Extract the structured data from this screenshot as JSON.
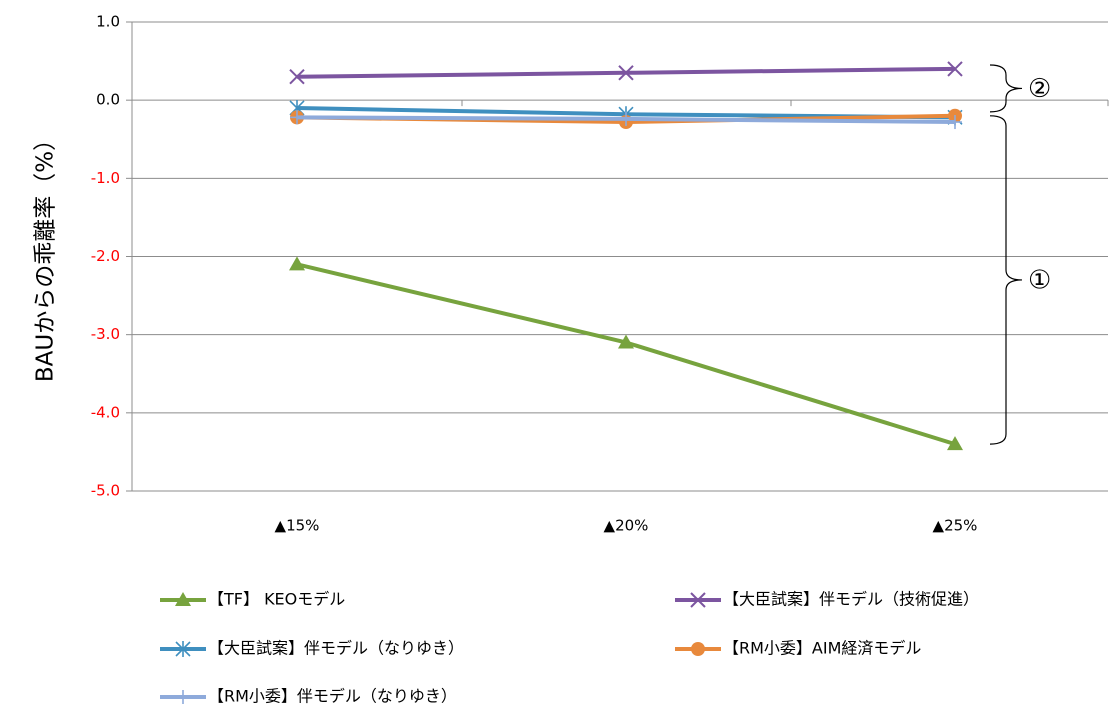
{
  "chart_data": {
    "type": "line",
    "title": "",
    "xlabel": "",
    "ylabel": "BAUからの乖離率（%）",
    "categories": [
      "▲15%",
      "▲20%",
      "▲25%"
    ],
    "ylim": [
      -5.0,
      1.0
    ],
    "yticks": [
      {
        "value": 1.0,
        "label": "1.0",
        "color": "#000000"
      },
      {
        "value": 0.0,
        "label": "0.0",
        "color": "#000000"
      },
      {
        "value": -1.0,
        "label": "-1.0",
        "color": "#ff0000"
      },
      {
        "value": -2.0,
        "label": "-2.0",
        "color": "#ff0000"
      },
      {
        "value": -3.0,
        "label": "-3.0",
        "color": "#ff0000"
      },
      {
        "value": -4.0,
        "label": "-4.0",
        "color": "#ff0000"
      },
      {
        "value": -5.0,
        "label": "-5.0",
        "color": "#ff0000"
      }
    ],
    "grid": true,
    "legend_position": "bottom",
    "series": [
      {
        "name": "【TF】 KEOモデル",
        "values": [
          -2.1,
          -3.1,
          -4.4
        ],
        "color": "#77a33e",
        "marker": "triangle"
      },
      {
        "name": "【大臣試案】伴モデル（技術促進）",
        "values": [
          0.3,
          0.35,
          0.4
        ],
        "color": "#7c55a0",
        "marker": "x"
      },
      {
        "name": "【大臣試案】伴モデル（なりゆき）",
        "values": [
          -0.1,
          -0.18,
          -0.22
        ],
        "color": "#3f8fbf",
        "marker": "asterisk"
      },
      {
        "name": "【RM小委】AIM経済モデル",
        "values": [
          -0.22,
          -0.28,
          -0.2
        ],
        "color": "#e8893c",
        "marker": "circle"
      },
      {
        "name": "【RM小委】伴モデル（なりゆき）",
        "values": [
          -0.22,
          -0.24,
          -0.28
        ],
        "color": "#8eaadb",
        "marker": "plus"
      }
    ],
    "annotations": [
      {
        "label": "①",
        "range": [
          -4.4,
          -0.2
        ]
      },
      {
        "label": "②",
        "range": [
          -0.15,
          0.45
        ]
      }
    ]
  }
}
